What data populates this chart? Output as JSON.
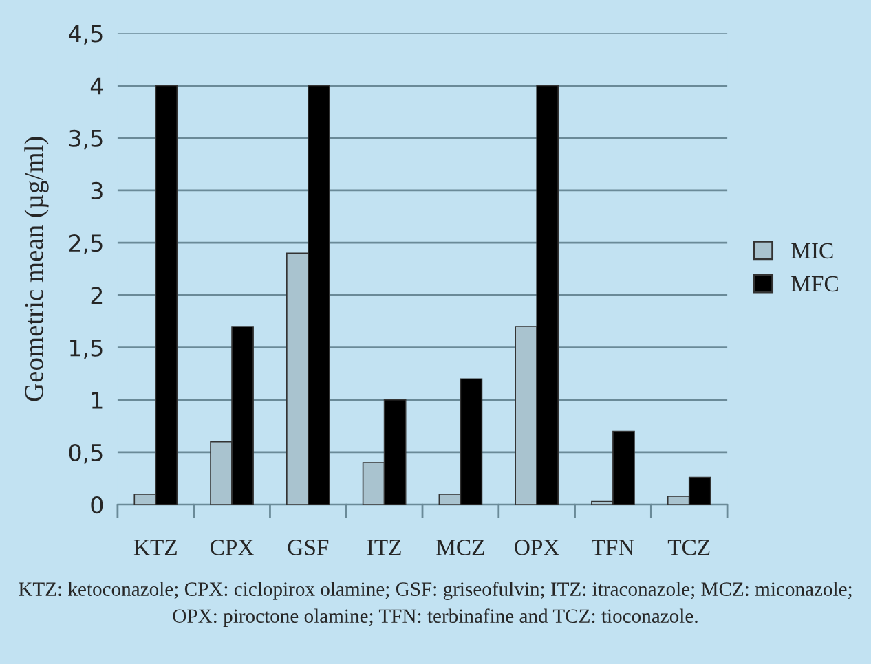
{
  "chart_data": {
    "type": "bar",
    "ylabel": "Geometric mean (µg/ml)",
    "categories": [
      "KTZ",
      "CPX",
      "GSF",
      "ITZ",
      "MCZ",
      "OPX",
      "TFN",
      "TCZ"
    ],
    "series": [
      {
        "name": "MIC",
        "color": "#a9c3cf",
        "values": [
          0.1,
          0.6,
          2.4,
          0.4,
          0.1,
          1.7,
          0.03,
          0.08
        ]
      },
      {
        "name": "MFC",
        "color": "#000000",
        "values": [
          4,
          1.7,
          4,
          1,
          1.2,
          4,
          0.7,
          0.26
        ]
      }
    ],
    "ylim": [
      0,
      4.5
    ],
    "yticks": [
      0,
      {
        "value": 0.5,
        "label": "0,5"
      },
      1,
      {
        "value": 1.5,
        "label": "1,5"
      },
      2,
      {
        "value": 2.5,
        "label": "2,5"
      },
      3,
      {
        "value": 3.5,
        "label": "3,5"
      },
      4,
      {
        "value": 4.5,
        "label": "4,5"
      }
    ],
    "grid": "y",
    "legend": "right",
    "annotations": [
      "KTZ: ketoconazole; CPX: ciclopirox olamine; GSF: griseofulvin; ITZ: itraconazole; MCZ: miconazole; OPX: piroctone olamine; TFN: terbinafine and TCZ: tioconazole."
    ]
  }
}
